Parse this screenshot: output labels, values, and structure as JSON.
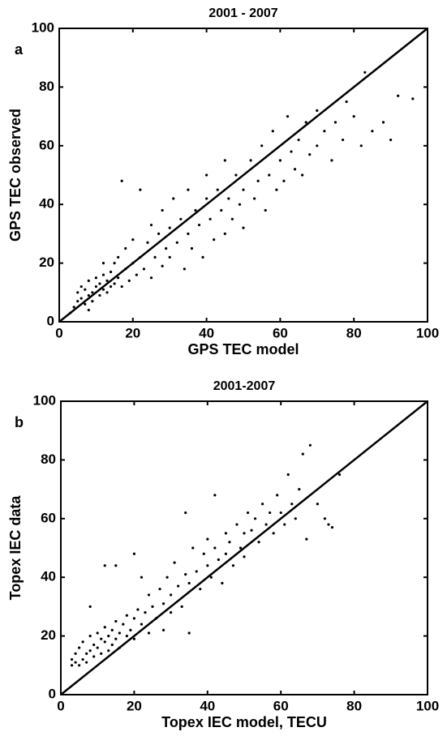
{
  "chart_data": [
    {
      "type": "scatter",
      "title": "2001 - 2007",
      "panel_label": "a",
      "xlabel": "GPS TEC model",
      "ylabel": "GPS TEC observed",
      "xlim": [
        0,
        100
      ],
      "ylim": [
        0,
        100
      ],
      "xticks": [
        0,
        20,
        40,
        60,
        80,
        100
      ],
      "yticks": [
        0,
        20,
        40,
        60,
        80,
        100
      ],
      "color": "#000000",
      "x": [
        4,
        5,
        5,
        6,
        6,
        7,
        7,
        8,
        8,
        9,
        9,
        10,
        10,
        11,
        11,
        12,
        12,
        13,
        13,
        14,
        14,
        15,
        15,
        16,
        16,
        17,
        18,
        18,
        19,
        20,
        20,
        21,
        22,
        22,
        23,
        24,
        25,
        25,
        26,
        27,
        28,
        28,
        29,
        30,
        30,
        31,
        32,
        33,
        34,
        35,
        35,
        36,
        37,
        38,
        39,
        40,
        40,
        41,
        42,
        43,
        44,
        45,
        45,
        46,
        47,
        48,
        49,
        50,
        50,
        52,
        53,
        54,
        55,
        56,
        57,
        58,
        59,
        60,
        61,
        62,
        63,
        64,
        65,
        66,
        67,
        68,
        70,
        70,
        72,
        74,
        75,
        77,
        78,
        80,
        82,
        83,
        85,
        88,
        90,
        92,
        96,
        17,
        12,
        8,
        3
      ],
      "y": [
        5,
        7,
        10,
        8,
        12,
        6,
        11,
        9,
        14,
        10,
        7,
        12,
        15,
        9,
        13,
        11,
        16,
        14,
        10,
        17,
        12,
        13,
        20,
        15,
        22,
        12,
        18,
        25,
        14,
        20,
        28,
        16,
        22,
        45,
        18,
        27,
        15,
        33,
        22,
        30,
        19,
        38,
        25,
        32,
        22,
        42,
        27,
        35,
        18,
        30,
        45,
        25,
        38,
        33,
        22,
        42,
        50,
        35,
        28,
        45,
        38,
        55,
        30,
        42,
        35,
        50,
        40,
        45,
        32,
        55,
        42,
        48,
        60,
        38,
        50,
        65,
        45,
        55,
        48,
        70,
        58,
        52,
        62,
        50,
        68,
        57,
        72,
        60,
        65,
        55,
        68,
        62,
        75,
        70,
        60,
        85,
        65,
        68,
        62,
        77,
        76,
        48,
        20,
        4,
        3
      ]
    },
    {
      "type": "scatter",
      "title": "2001-2007",
      "panel_label": "b",
      "xlabel": "Topex IEC model, TECU",
      "ylabel": "Topex IEC data",
      "xlim": [
        0,
        100
      ],
      "ylim": [
        0,
        100
      ],
      "xticks": [
        0,
        20,
        40,
        60,
        80,
        100
      ],
      "yticks": [
        0,
        20,
        40,
        60,
        80,
        100
      ],
      "color": "#000000",
      "x": [
        3,
        3,
        4,
        4,
        5,
        5,
        6,
        6,
        7,
        7,
        8,
        8,
        9,
        9,
        10,
        10,
        11,
        11,
        12,
        12,
        13,
        13,
        14,
        14,
        15,
        15,
        16,
        16,
        17,
        18,
        18,
        19,
        20,
        20,
        21,
        22,
        22,
        23,
        24,
        24,
        25,
        26,
        27,
        28,
        28,
        29,
        30,
        30,
        31,
        32,
        33,
        34,
        35,
        35,
        36,
        37,
        38,
        39,
        40,
        40,
        41,
        42,
        43,
        44,
        45,
        45,
        46,
        47,
        48,
        49,
        50,
        50,
        51,
        52,
        53,
        54,
        55,
        56,
        57,
        58,
        59,
        60,
        61,
        62,
        63,
        64,
        65,
        66,
        67,
        68,
        70,
        72,
        73,
        74,
        76,
        8,
        12,
        15,
        34,
        42,
        20
      ],
      "y": [
        10,
        12,
        11,
        14,
        10,
        16,
        12,
        18,
        11,
        14,
        15,
        20,
        13,
        17,
        16,
        21,
        14,
        19,
        18,
        23,
        15,
        20,
        22,
        17,
        19,
        25,
        21,
        16,
        24,
        20,
        27,
        22,
        26,
        19,
        29,
        24,
        40,
        28,
        34,
        21,
        30,
        26,
        36,
        31,
        22,
        40,
        34,
        28,
        45,
        37,
        30,
        41,
        38,
        21,
        50,
        42,
        36,
        48,
        44,
        53,
        40,
        50,
        46,
        38,
        55,
        48,
        52,
        44,
        58,
        50,
        55,
        47,
        62,
        56,
        60,
        52,
        65,
        58,
        62,
        55,
        68,
        62,
        58,
        75,
        65,
        60,
        70,
        82,
        53,
        85,
        65,
        60,
        58,
        57,
        75,
        30,
        44,
        44,
        62,
        68,
        48
      ]
    }
  ]
}
